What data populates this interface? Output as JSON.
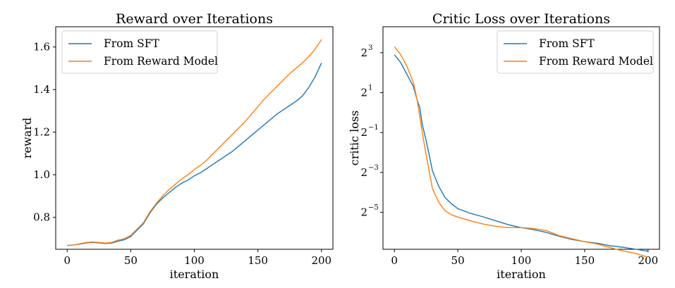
{
  "chart_data": [
    {
      "type": "line",
      "title": "Reward over Iterations",
      "xlabel": "iteration",
      "ylabel": "reward",
      "xlim": [
        -9,
        209
      ],
      "ylim": [
        0.65,
        1.695
      ],
      "xticks": [
        0,
        50,
        100,
        150,
        200
      ],
      "yticks": [
        0.8,
        1.0,
        1.2,
        1.4,
        1.6
      ],
      "ytick_labels": [
        "0.8",
        "1.0",
        "1.2",
        "1.4",
        "1.6"
      ],
      "legend": "top-left",
      "grid": false,
      "series": [
        {
          "name": "From SFT",
          "color": "#1f77b4",
          "x": [
            0,
            5,
            10,
            15,
            20,
            25,
            30,
            35,
            40,
            45,
            50,
            55,
            60,
            65,
            70,
            75,
            80,
            85,
            90,
            95,
            100,
            105,
            110,
            115,
            120,
            125,
            130,
            135,
            140,
            145,
            150,
            155,
            160,
            165,
            170,
            175,
            180,
            185,
            190,
            195,
            200
          ],
          "values": [
            0.668,
            0.67,
            0.674,
            0.68,
            0.682,
            0.68,
            0.677,
            0.679,
            0.688,
            0.695,
            0.71,
            0.74,
            0.77,
            0.82,
            0.86,
            0.89,
            0.915,
            0.94,
            0.96,
            0.975,
            0.995,
            1.01,
            1.03,
            1.05,
            1.07,
            1.09,
            1.11,
            1.135,
            1.16,
            1.185,
            1.21,
            1.235,
            1.26,
            1.285,
            1.305,
            1.325,
            1.345,
            1.37,
            1.41,
            1.46,
            1.525
          ]
        },
        {
          "name": "From Reward Model",
          "color": "#ff7f0e",
          "x": [
            0,
            5,
            10,
            15,
            20,
            25,
            30,
            35,
            40,
            45,
            50,
            55,
            60,
            65,
            70,
            75,
            80,
            85,
            90,
            95,
            100,
            105,
            110,
            115,
            120,
            125,
            130,
            135,
            140,
            145,
            150,
            155,
            160,
            165,
            170,
            175,
            180,
            185,
            190,
            195,
            200
          ],
          "values": [
            0.667,
            0.67,
            0.676,
            0.682,
            0.684,
            0.682,
            0.679,
            0.682,
            0.693,
            0.7,
            0.715,
            0.745,
            0.775,
            0.825,
            0.865,
            0.9,
            0.93,
            0.955,
            0.98,
            1.0,
            1.025,
            1.045,
            1.07,
            1.1,
            1.13,
            1.16,
            1.19,
            1.22,
            1.25,
            1.285,
            1.32,
            1.355,
            1.385,
            1.415,
            1.445,
            1.475,
            1.5,
            1.525,
            1.555,
            1.59,
            1.635
          ]
        }
      ]
    },
    {
      "type": "line",
      "title": "Critic Loss over Iterations",
      "xlabel": "iteration",
      "ylabel": "critic loss",
      "yscale": "log2",
      "xlim": [
        -9,
        209
      ],
      "ylim_log2": [
        -6.85,
        4.3
      ],
      "xticks": [
        0,
        50,
        100,
        150,
        200
      ],
      "ytick_exponents": [
        -5,
        -3,
        -1,
        1,
        3
      ],
      "legend": "top-right",
      "grid": false,
      "series": [
        {
          "name": "From SFT",
          "color": "#1f77b4",
          "x": [
            0,
            5,
            10,
            15,
            18,
            20,
            22,
            25,
            28,
            30,
            35,
            40,
            45,
            50,
            60,
            70,
            80,
            90,
            100,
            110,
            120,
            130,
            140,
            150,
            160,
            170,
            180,
            190,
            200
          ],
          "values": [
            7.46,
            5.66,
            3.73,
            2.46,
            1.52,
            1.2,
            0.66,
            0.38,
            0.203,
            0.132,
            0.077,
            0.052,
            0.042,
            0.0355,
            0.0302,
            0.0267,
            0.0233,
            0.0203,
            0.0184,
            0.0171,
            0.0155,
            0.0136,
            0.0122,
            0.0113,
            0.0107,
            0.0098,
            0.0093,
            0.0087,
            0.0081
          ]
        },
        {
          "name": "From Reward Model",
          "color": "#ff7f0e",
          "x": [
            0,
            5,
            10,
            15,
            18,
            20,
            22,
            25,
            28,
            30,
            35,
            40,
            45,
            50,
            60,
            70,
            80,
            90,
            100,
            110,
            120,
            130,
            140,
            150,
            160,
            170,
            180,
            190,
            200
          ],
          "values": [
            9.85,
            7.46,
            4.92,
            2.83,
            1.52,
            0.87,
            0.5,
            0.231,
            0.115,
            0.071,
            0.044,
            0.033,
            0.0287,
            0.0265,
            0.0233,
            0.0208,
            0.0192,
            0.0184,
            0.0184,
            0.0178,
            0.0165,
            0.0139,
            0.0125,
            0.0113,
            0.0104,
            0.0092,
            0.0082,
            0.0075,
            0.0066
          ]
        }
      ]
    }
  ]
}
